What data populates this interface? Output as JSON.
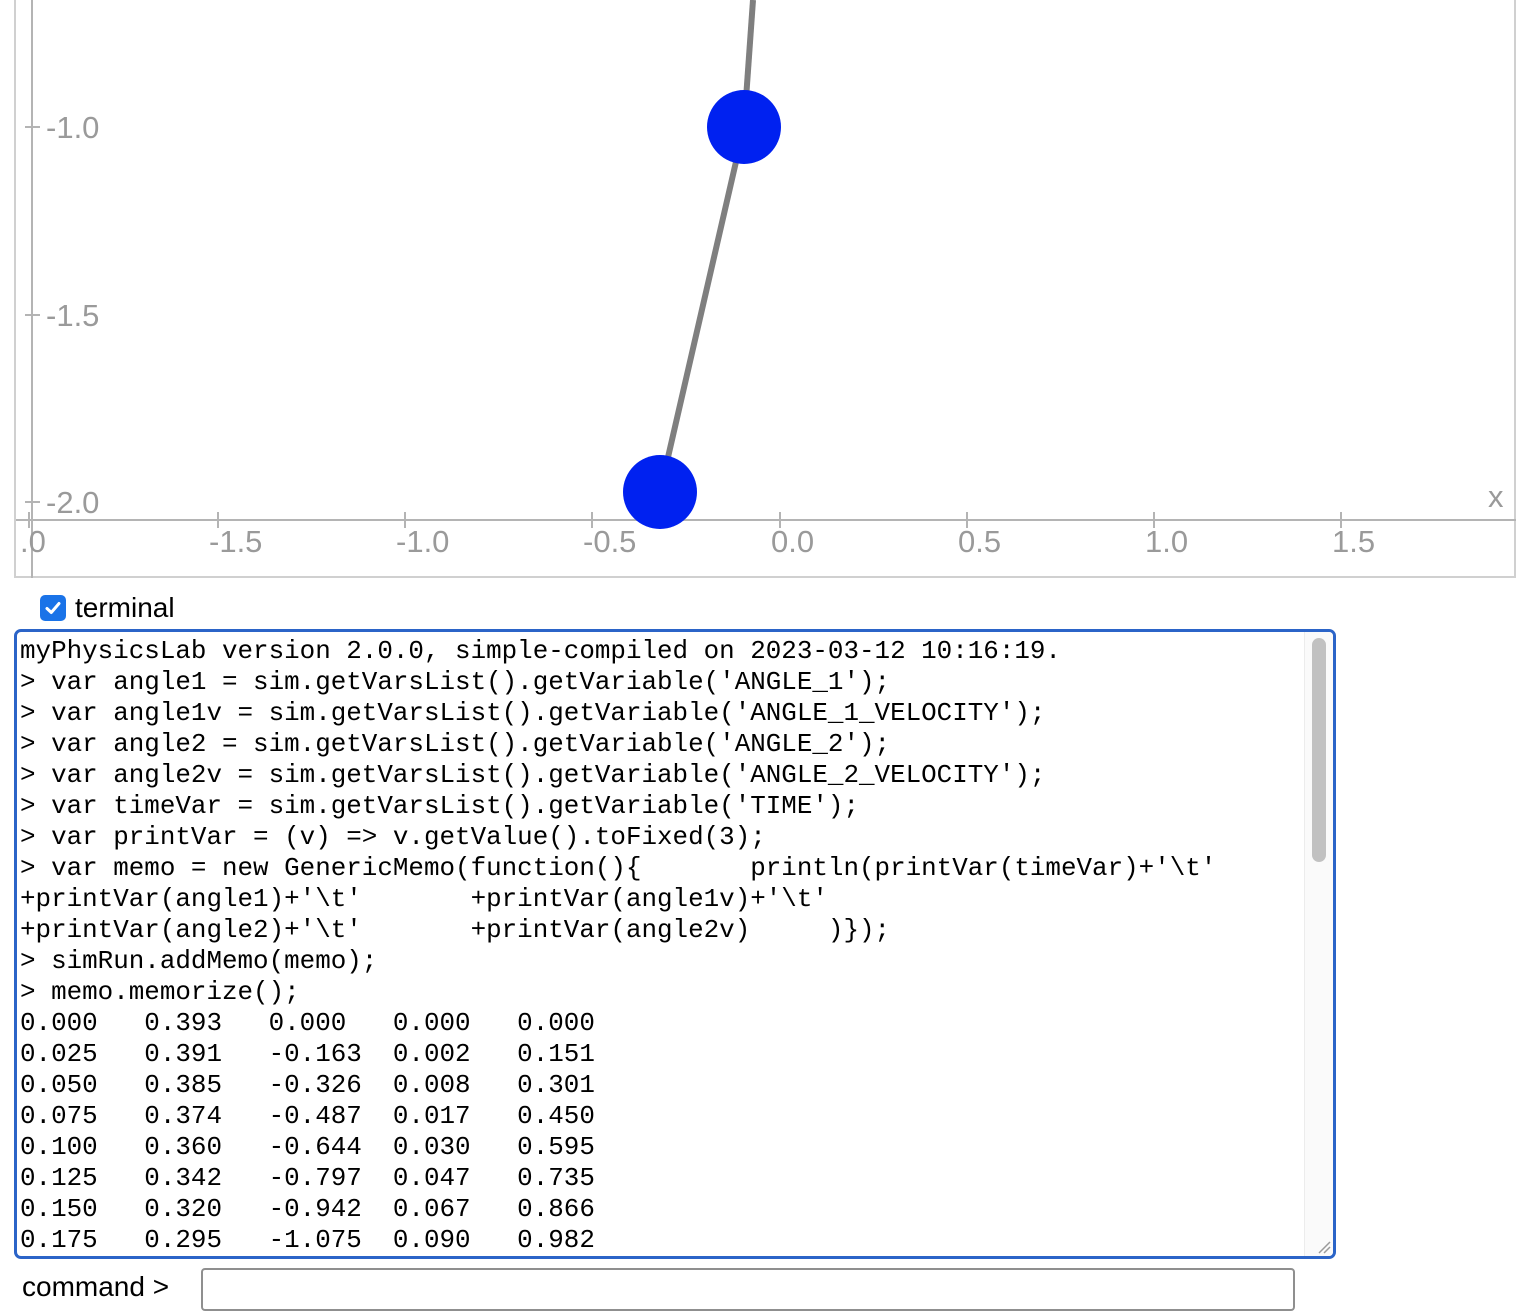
{
  "simulation": {
    "x_axis_name": "x",
    "x_ticks": [
      ".0",
      "-1.5",
      "-1.0",
      "-0.5",
      "0.0",
      "0.5",
      "1.0",
      "1.5"
    ],
    "y_ticks": [
      "-1.0",
      "-1.5",
      "-2.0"
    ],
    "colors": {
      "bob": "#0021f0",
      "rod": "#7f7f7f",
      "axis": "#b4b4b4",
      "text": "#9a9a9a"
    }
  },
  "terminal_toggle": {
    "label": "terminal",
    "checked": true
  },
  "terminal": {
    "lines": [
      "myPhysicsLab version 2.0.0, simple-compiled on 2023-03-12 10:16:19.",
      "> var angle1 = sim.getVarsList().getVariable('ANGLE_1');",
      "> var angle1v = sim.getVarsList().getVariable('ANGLE_1_VELOCITY');",
      "> var angle2 = sim.getVarsList().getVariable('ANGLE_2');",
      "> var angle2v = sim.getVarsList().getVariable('ANGLE_2_VELOCITY');",
      "> var timeVar = sim.getVarsList().getVariable('TIME');",
      "> var printVar = (v) => v.getValue().toFixed(3);",
      "> var memo = new GenericMemo(function(){       println(printVar(timeVar)+'\\t'",
      "+printVar(angle1)+'\\t'       +printVar(angle1v)+'\\t'",
      "+printVar(angle2)+'\\t'       +printVar(angle2v)     )});",
      "> simRun.addMemo(memo);",
      "> memo.memorize();",
      "0.000   0.393   0.000   0.000   0.000",
      "0.025   0.391   -0.163  0.002   0.151",
      "0.050   0.385   -0.326  0.008   0.301",
      "0.075   0.374   -0.487  0.017   0.450",
      "0.100   0.360   -0.644  0.030   0.595",
      "0.125   0.342   -0.797  0.047   0.735",
      "0.150   0.320   -0.942  0.067   0.866",
      "0.175   0.295   -1.075  0.090   0.982"
    ]
  },
  "command": {
    "label": "command >",
    "value": ""
  }
}
